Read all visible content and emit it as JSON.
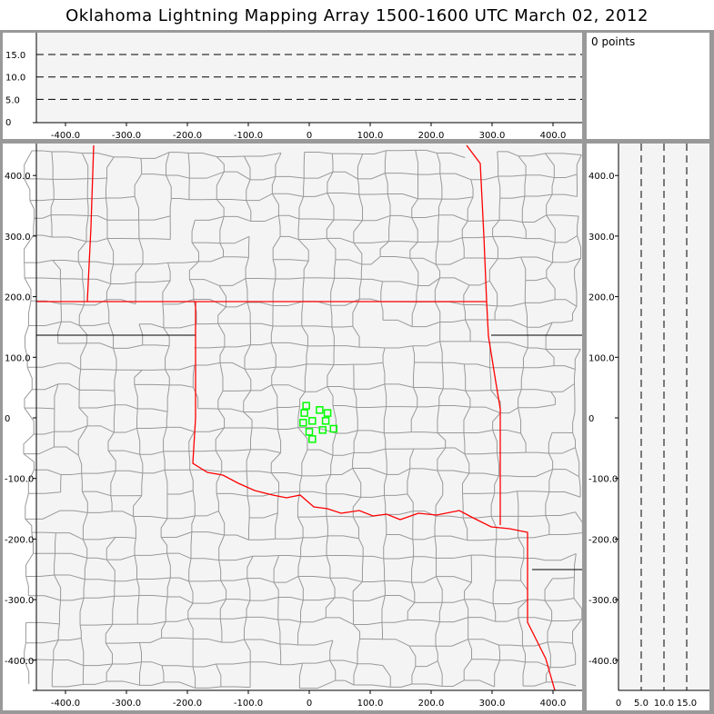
{
  "title": "Oklahoma Lightning Mapping Array   1500-1600 UTC  March 02, 2012",
  "point_count": "0 points",
  "colors": {
    "state_border": "#ff0000",
    "county_border": "#999999",
    "station": "#00ff00",
    "plot_bg": "#f4f4f4"
  },
  "axes": {
    "x_ticks": [
      "-400.0",
      "-300.0",
      "-200.0",
      "-100.0",
      "0",
      "100.0",
      "200.0",
      "300.0",
      "400.0"
    ],
    "y_ticks": [
      "400.0",
      "300.0",
      "200.0",
      "100.0",
      "0",
      "-100.0",
      "-200.0",
      "-300.0",
      "-400.0"
    ],
    "alt_ticks": [
      "0",
      "5.0",
      "10.0",
      "15.0"
    ]
  },
  "stations": [
    [
      -5,
      20
    ],
    [
      -8,
      8
    ],
    [
      -10,
      -8
    ],
    [
      5,
      -5
    ],
    [
      17,
      13
    ],
    [
      30,
      8
    ],
    [
      27,
      -5
    ],
    [
      22,
      -20
    ],
    [
      40,
      -18
    ],
    [
      0,
      -23
    ],
    [
      5,
      -35
    ]
  ]
}
